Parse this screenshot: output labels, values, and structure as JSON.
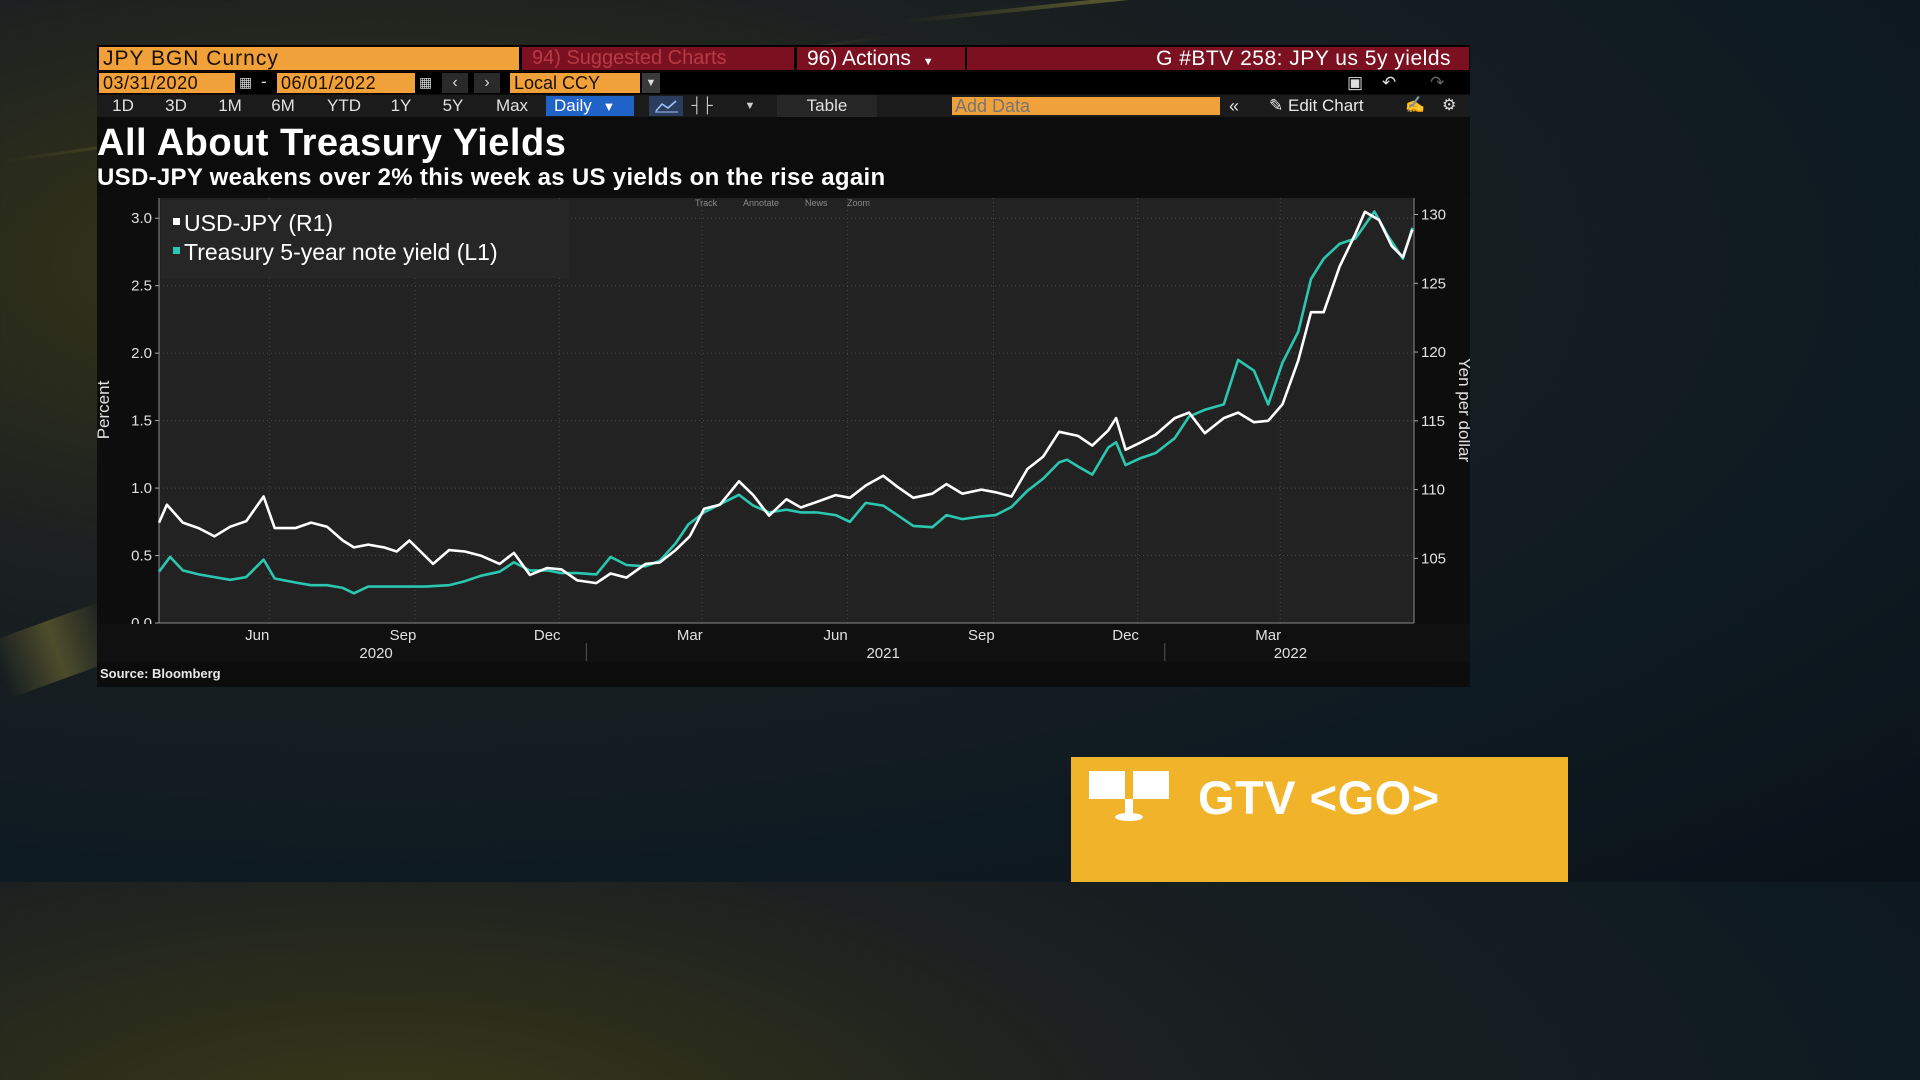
{
  "toolbar": {
    "security": "JPY BGN Curncy",
    "suggested": "94) Suggested Charts",
    "actions": "96) Actions",
    "chart_code": "G #BTV 258: JPY us 5y yields",
    "start_date": "03/31/2020",
    "dash": "-",
    "end_date": "06/01/2022",
    "currency": "Local CCY",
    "ranges": [
      "1D",
      "3D",
      "1M",
      "6M",
      "YTD",
      "1Y",
      "5Y",
      "Max"
    ],
    "periodicity": "Daily",
    "table_label": "Table",
    "add_data_placeholder": "Add Data",
    "edit_chart_label": "Edit Chart"
  },
  "chart_tools": [
    "Track",
    "Annotate",
    "News",
    "Zoom"
  ],
  "colors": {
    "usd_jpy": "#ffffff",
    "treasury": "#2cc7b0",
    "accent": "#f0a13a",
    "banner": "#f1b32a"
  },
  "source": "Source: Bloomberg",
  "banner": {
    "label": "GTV <GO>"
  },
  "chart_data": {
    "type": "line",
    "title": "All About Treasury Yields",
    "subtitle": "USD-JPY weakens over 2% this week as US yields on the rise again",
    "ylabel_left": "Percent",
    "ylabel_right": "Yen per dollar",
    "ylim_left": [
      0.0,
      3.15
    ],
    "ylim_right": [
      100.3,
      131.2
    ],
    "yticks_left": [
      "0.0",
      "0.5",
      "1.0",
      "1.5",
      "2.0",
      "2.5",
      "3.0"
    ],
    "yticks_right": [
      "105",
      "110",
      "115",
      "120",
      "125",
      "130"
    ],
    "x_month_ticks": [
      {
        "date": "2020-06-01",
        "label": "Jun"
      },
      {
        "date": "2020-09-01",
        "label": "Sep"
      },
      {
        "date": "2020-12-01",
        "label": "Dec"
      },
      {
        "date": "2021-03-01",
        "label": "Mar"
      },
      {
        "date": "2021-06-01",
        "label": "Jun"
      },
      {
        "date": "2021-09-01",
        "label": "Sep"
      },
      {
        "date": "2021-12-01",
        "label": "Dec"
      },
      {
        "date": "2022-03-01",
        "label": "Mar"
      }
    ],
    "x_year_labels": [
      {
        "date": "2020-08-15",
        "label": "2020"
      },
      {
        "date": "2021-07-01",
        "label": "2021"
      },
      {
        "date": "2022-03-15",
        "label": "2022"
      }
    ],
    "x_year_separators": [
      "2021-01-01",
      "2022-01-01"
    ],
    "x_range": [
      "2020-03-31",
      "2022-06-01"
    ],
    "grid": true,
    "legend_position": "top-left",
    "series": [
      {
        "name": "USD-JPY (R1)",
        "axis": "right",
        "points": [
          [
            "2020-03-31",
            107.6
          ],
          [
            "2020-04-05",
            108.9
          ],
          [
            "2020-04-15",
            107.6
          ],
          [
            "2020-04-25",
            107.2
          ],
          [
            "2020-05-05",
            106.6
          ],
          [
            "2020-05-15",
            107.3
          ],
          [
            "2020-05-25",
            107.7
          ],
          [
            "2020-06-05",
            109.5
          ],
          [
            "2020-06-12",
            107.2
          ],
          [
            "2020-06-25",
            107.2
          ],
          [
            "2020-07-05",
            107.6
          ],
          [
            "2020-07-15",
            107.3
          ],
          [
            "2020-07-25",
            106.3
          ],
          [
            "2020-08-01",
            105.8
          ],
          [
            "2020-08-10",
            106.0
          ],
          [
            "2020-08-20",
            105.8
          ],
          [
            "2020-08-28",
            105.5
          ],
          [
            "2020-09-05",
            106.3
          ],
          [
            "2020-09-20",
            104.6
          ],
          [
            "2020-09-30",
            105.6
          ],
          [
            "2020-10-10",
            105.5
          ],
          [
            "2020-10-20",
            105.2
          ],
          [
            "2020-11-01",
            104.6
          ],
          [
            "2020-11-10",
            105.4
          ],
          [
            "2020-11-20",
            103.8
          ],
          [
            "2020-12-01",
            104.3
          ],
          [
            "2020-12-10",
            104.2
          ],
          [
            "2020-12-20",
            103.4
          ],
          [
            "2021-01-01",
            103.2
          ],
          [
            "2021-01-10",
            103.9
          ],
          [
            "2021-01-20",
            103.6
          ],
          [
            "2021-02-01",
            104.6
          ],
          [
            "2021-02-10",
            104.7
          ],
          [
            "2021-02-20",
            105.6
          ],
          [
            "2021-03-01",
            106.6
          ],
          [
            "2021-03-10",
            108.6
          ],
          [
            "2021-03-20",
            108.9
          ],
          [
            "2021-04-01",
            110.6
          ],
          [
            "2021-04-10",
            109.6
          ],
          [
            "2021-04-20",
            108.1
          ],
          [
            "2021-05-01",
            109.3
          ],
          [
            "2021-05-10",
            108.7
          ],
          [
            "2021-05-20",
            109.1
          ],
          [
            "2021-06-01",
            109.6
          ],
          [
            "2021-06-10",
            109.4
          ],
          [
            "2021-06-20",
            110.3
          ],
          [
            "2021-07-01",
            111.0
          ],
          [
            "2021-07-10",
            110.2
          ],
          [
            "2021-07-20",
            109.4
          ],
          [
            "2021-08-01",
            109.7
          ],
          [
            "2021-08-10",
            110.4
          ],
          [
            "2021-08-20",
            109.7
          ],
          [
            "2021-09-01",
            110.0
          ],
          [
            "2021-09-10",
            109.8
          ],
          [
            "2021-09-20",
            109.5
          ],
          [
            "2021-09-30",
            111.5
          ],
          [
            "2021-10-10",
            112.4
          ],
          [
            "2021-10-20",
            114.2
          ],
          [
            "2021-11-01",
            113.9
          ],
          [
            "2021-11-10",
            113.2
          ],
          [
            "2021-11-20",
            114.3
          ],
          [
            "2021-11-25",
            115.2
          ],
          [
            "2021-12-01",
            112.9
          ],
          [
            "2021-12-10",
            113.4
          ],
          [
            "2021-12-20",
            114.0
          ],
          [
            "2022-01-01",
            115.2
          ],
          [
            "2022-01-10",
            115.6
          ],
          [
            "2022-01-20",
            114.1
          ],
          [
            "2022-02-01",
            115.2
          ],
          [
            "2022-02-10",
            115.6
          ],
          [
            "2022-02-20",
            114.9
          ],
          [
            "2022-03-01",
            115.0
          ],
          [
            "2022-03-10",
            116.2
          ],
          [
            "2022-03-20",
            119.4
          ],
          [
            "2022-03-28",
            122.9
          ],
          [
            "2022-04-05",
            122.9
          ],
          [
            "2022-04-15",
            126.2
          ],
          [
            "2022-04-25",
            128.6
          ],
          [
            "2022-05-01",
            130.2
          ],
          [
            "2022-05-10",
            129.6
          ],
          [
            "2022-05-18",
            127.7
          ],
          [
            "2022-05-25",
            126.9
          ],
          [
            "2022-05-31",
            128.9
          ]
        ]
      },
      {
        "name": "Treasury 5-year note yield (L1)",
        "axis": "left",
        "points": [
          [
            "2020-03-31",
            0.38
          ],
          [
            "2020-04-07",
            0.49
          ],
          [
            "2020-04-15",
            0.39
          ],
          [
            "2020-04-25",
            0.36
          ],
          [
            "2020-05-05",
            0.34
          ],
          [
            "2020-05-15",
            0.32
          ],
          [
            "2020-05-25",
            0.34
          ],
          [
            "2020-06-05",
            0.47
          ],
          [
            "2020-06-12",
            0.33
          ],
          [
            "2020-06-25",
            0.3
          ],
          [
            "2020-07-05",
            0.28
          ],
          [
            "2020-07-15",
            0.28
          ],
          [
            "2020-07-25",
            0.26
          ],
          [
            "2020-08-01",
            0.22
          ],
          [
            "2020-08-10",
            0.27
          ],
          [
            "2020-08-20",
            0.27
          ],
          [
            "2020-09-01",
            0.27
          ],
          [
            "2020-09-15",
            0.27
          ],
          [
            "2020-09-30",
            0.28
          ],
          [
            "2020-10-10",
            0.31
          ],
          [
            "2020-10-20",
            0.35
          ],
          [
            "2020-11-01",
            0.38
          ],
          [
            "2020-11-10",
            0.45
          ],
          [
            "2020-11-20",
            0.39
          ],
          [
            "2020-12-01",
            0.39
          ],
          [
            "2020-12-10",
            0.37
          ],
          [
            "2020-12-20",
            0.37
          ],
          [
            "2021-01-01",
            0.36
          ],
          [
            "2021-01-10",
            0.49
          ],
          [
            "2021-01-20",
            0.43
          ],
          [
            "2021-02-01",
            0.42
          ],
          [
            "2021-02-10",
            0.46
          ],
          [
            "2021-02-20",
            0.59
          ],
          [
            "2021-02-28",
            0.73
          ],
          [
            "2021-03-10",
            0.82
          ],
          [
            "2021-03-20",
            0.88
          ],
          [
            "2021-04-01",
            0.95
          ],
          [
            "2021-04-10",
            0.87
          ],
          [
            "2021-04-20",
            0.82
          ],
          [
            "2021-05-01",
            0.84
          ],
          [
            "2021-05-10",
            0.82
          ],
          [
            "2021-05-20",
            0.82
          ],
          [
            "2021-06-01",
            0.8
          ],
          [
            "2021-06-10",
            0.75
          ],
          [
            "2021-06-20",
            0.89
          ],
          [
            "2021-07-01",
            0.87
          ],
          [
            "2021-07-10",
            0.8
          ],
          [
            "2021-07-20",
            0.72
          ],
          [
            "2021-08-01",
            0.71
          ],
          [
            "2021-08-10",
            0.8
          ],
          [
            "2021-08-20",
            0.77
          ],
          [
            "2021-09-01",
            0.79
          ],
          [
            "2021-09-10",
            0.8
          ],
          [
            "2021-09-20",
            0.86
          ],
          [
            "2021-09-30",
            0.98
          ],
          [
            "2021-10-10",
            1.07
          ],
          [
            "2021-10-20",
            1.19
          ],
          [
            "2021-10-25",
            1.21
          ],
          [
            "2021-11-01",
            1.16
          ],
          [
            "2021-11-10",
            1.1
          ],
          [
            "2021-11-20",
            1.3
          ],
          [
            "2021-11-25",
            1.34
          ],
          [
            "2021-12-01",
            1.17
          ],
          [
            "2021-12-10",
            1.22
          ],
          [
            "2021-12-20",
            1.26
          ],
          [
            "2022-01-01",
            1.37
          ],
          [
            "2022-01-10",
            1.53
          ],
          [
            "2022-01-20",
            1.58
          ],
          [
            "2022-02-01",
            1.62
          ],
          [
            "2022-02-10",
            1.95
          ],
          [
            "2022-02-20",
            1.87
          ],
          [
            "2022-03-01",
            1.62
          ],
          [
            "2022-03-10",
            1.93
          ],
          [
            "2022-03-20",
            2.16
          ],
          [
            "2022-03-28",
            2.55
          ],
          [
            "2022-04-05",
            2.7
          ],
          [
            "2022-04-15",
            2.81
          ],
          [
            "2022-04-25",
            2.85
          ],
          [
            "2022-05-01",
            2.95
          ],
          [
            "2022-05-07",
            3.05
          ],
          [
            "2022-05-15",
            2.88
          ],
          [
            "2022-05-25",
            2.7
          ],
          [
            "2022-05-31",
            2.93
          ]
        ]
      }
    ]
  }
}
